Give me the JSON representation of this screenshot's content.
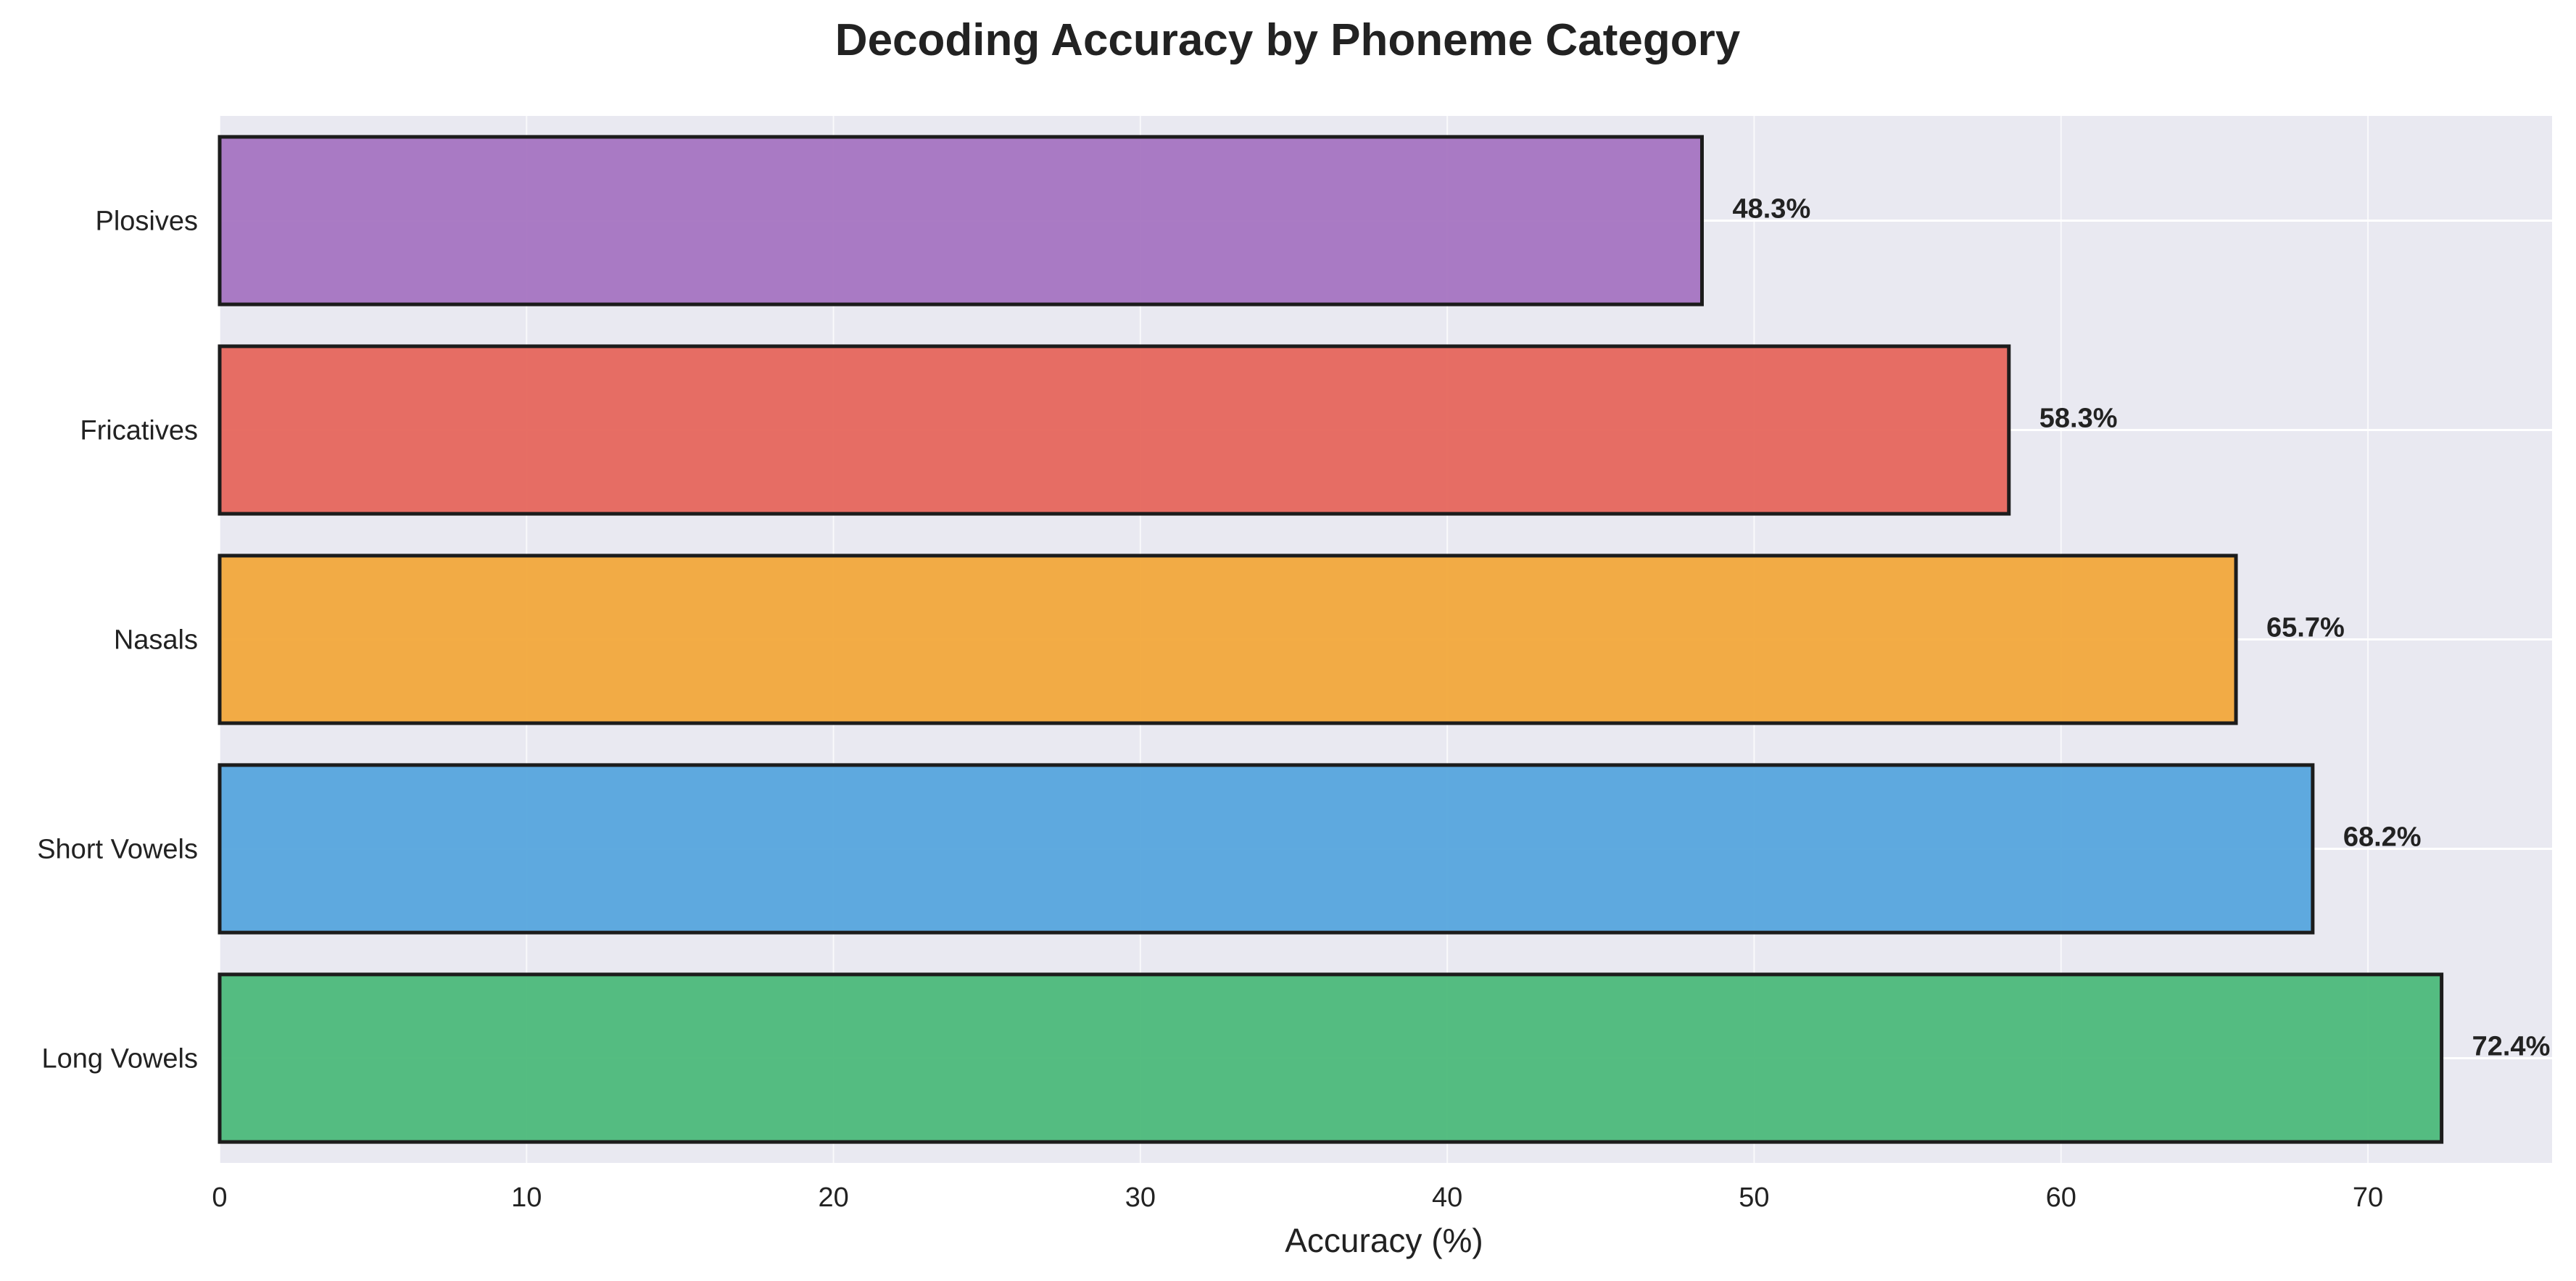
{
  "chart_data": {
    "type": "bar",
    "orientation": "horizontal",
    "title": "Decoding Accuracy by Phoneme Category",
    "xlabel": "Accuracy (%)",
    "ylabel": "",
    "xlim": [
      0,
      76
    ],
    "xticks": [
      "0",
      "10",
      "20",
      "30",
      "40",
      "50",
      "60",
      "70"
    ],
    "grid": true,
    "categories": [
      "Long Vowels",
      "Short Vowels",
      "Nasals",
      "Fricatives",
      "Plosives"
    ],
    "values": [
      72.4,
      68.2,
      65.7,
      58.3,
      48.3
    ],
    "value_labels": [
      "72.4%",
      "68.2%",
      "65.7%",
      "58.3%",
      "48.3%"
    ],
    "colors": [
      "#4cb97a",
      "#56a5dd",
      "#f2a83b",
      "#e6665c",
      "#a574c1"
    ],
    "background_color": "#e9e9f1"
  }
}
